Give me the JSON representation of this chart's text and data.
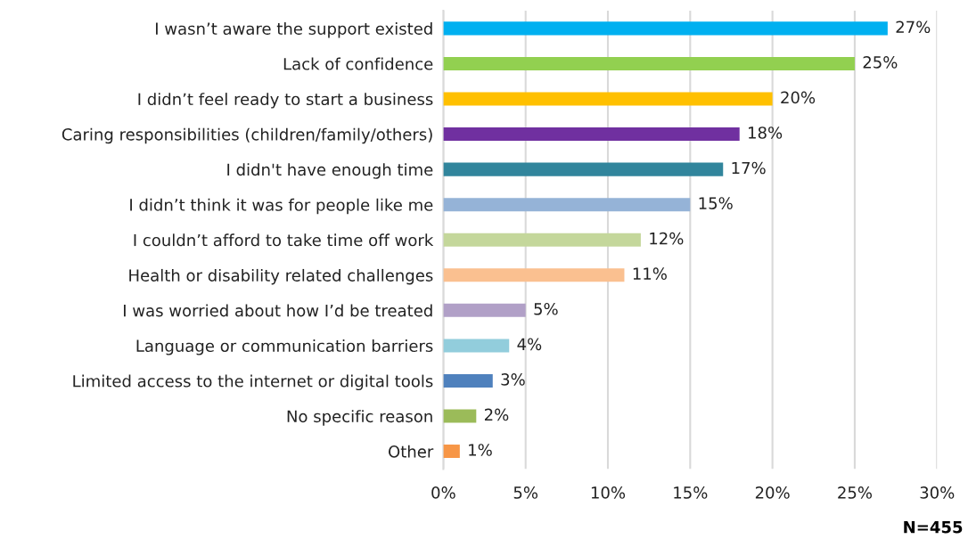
{
  "chart_data": {
    "type": "bar",
    "orientation": "horizontal",
    "categories": [
      "I wasn’t aware the support existed",
      "Lack of confidence",
      "I didn’t feel ready to start a business",
      "Caring responsibilities (children/family/others)",
      "I didn't have enough time",
      "I didn’t think it was for people like me",
      "I couldn’t afford to take time off work",
      "Health or disability related challenges",
      "I was worried about how I’d be treated",
      "Language or communication barriers",
      "Limited access to the internet or digital tools",
      "No specific reason",
      "Other"
    ],
    "values": [
      27,
      25,
      20,
      18,
      17,
      15,
      12,
      11,
      5,
      4,
      3,
      2,
      1
    ],
    "colors": [
      "#00b0f0",
      "#92d050",
      "#ffc000",
      "#7030a0",
      "#31859c",
      "#95b3d7",
      "#c4d79b",
      "#fac090",
      "#b1a0c7",
      "#92cddc",
      "#4f81bd",
      "#9bbb59",
      "#f79646"
    ],
    "value_labels": [
      "27%",
      "25%",
      "20%",
      "18%",
      "17%",
      "15%",
      "12%",
      "11%",
      "5%",
      "4%",
      "3%",
      "2%",
      "1%"
    ],
    "xlim": [
      0,
      30
    ],
    "xticks": [
      {
        "value": 0,
        "label": "0%"
      },
      {
        "value": 5,
        "label": "5%"
      },
      {
        "value": 10,
        "label": "10%"
      },
      {
        "value": 15,
        "label": "15%"
      },
      {
        "value": 20,
        "label": "20%"
      },
      {
        "value": 25,
        "label": "25%"
      },
      {
        "value": 30,
        "label": "30%"
      }
    ],
    "grid": "x",
    "annotations": [
      "N=455"
    ]
  }
}
